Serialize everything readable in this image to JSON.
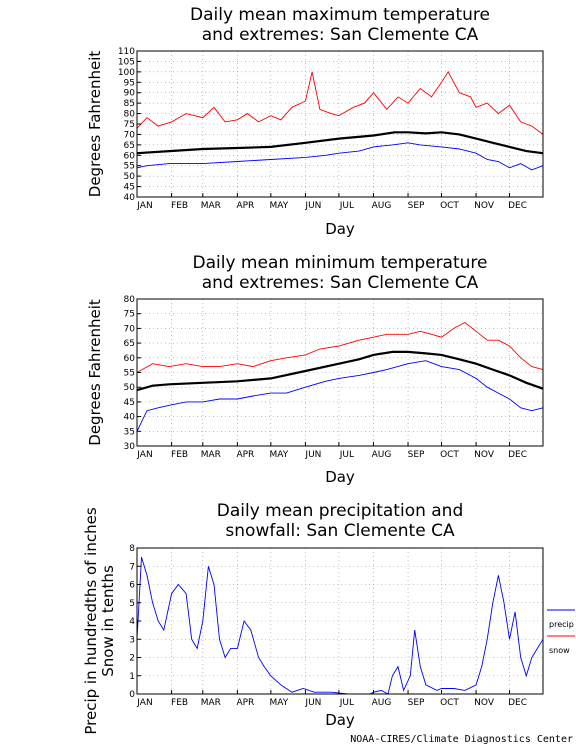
{
  "credit": "NOAA-CIRES/Climate Diagnostics Center",
  "chart_data": [
    {
      "type": "line",
      "title_lines": [
        "Daily mean maximum temperature",
        "and extremes: San Clemente CA"
      ],
      "xlabel": "Day",
      "ylabel": "Degrees Fahrenheit",
      "ylim": [
        40,
        110
      ],
      "yticks": [
        40,
        45,
        50,
        55,
        60,
        65,
        70,
        75,
        80,
        85,
        90,
        95,
        100,
        105,
        110
      ],
      "xticks": [
        "JAN",
        "FEB",
        "MAR",
        "APR",
        "MAY",
        "JUN",
        "JUL",
        "AUG",
        "SEP",
        "OCT",
        "NOV",
        "DEC"
      ],
      "grid": true,
      "series": [
        {
          "color": "#ff0000",
          "x": [
            1,
            10,
            20,
            32,
            45,
            60,
            70,
            80,
            91,
            100,
            110,
            121,
            130,
            140,
            152,
            158,
            165,
            175,
            182,
            195,
            205,
            213,
            225,
            235,
            244,
            255,
            265,
            274,
            280,
            290,
            300,
            305,
            315,
            325,
            335,
            345,
            355,
            365
          ],
          "values": [
            73,
            78,
            74,
            76,
            80,
            78,
            83,
            76,
            77,
            80,
            76,
            79,
            77,
            83,
            86,
            100,
            82,
            80,
            79,
            83,
            85,
            90,
            82,
            88,
            85,
            92,
            88,
            95,
            100,
            90,
            88,
            83,
            85,
            80,
            84,
            76,
            74,
            70
          ]
        },
        {
          "color": "#000000",
          "x": [
            1,
            30,
            60,
            91,
            121,
            152,
            182,
            213,
            232,
            244,
            260,
            274,
            290,
            305,
            320,
            335,
            350,
            365
          ],
          "values": [
            61,
            62,
            63,
            63.5,
            64,
            66,
            68,
            69.5,
            71,
            71,
            70.5,
            71,
            70,
            68,
            66,
            64,
            62,
            61
          ]
        },
        {
          "color": "#0000ff",
          "x": [
            1,
            10,
            30,
            60,
            91,
            121,
            152,
            170,
            182,
            200,
            213,
            230,
            244,
            255,
            274,
            290,
            305,
            315,
            325,
            335,
            345,
            355,
            365
          ],
          "values": [
            54,
            55,
            56,
            56,
            57,
            58,
            59,
            60,
            61,
            62,
            64,
            65,
            66,
            65,
            64,
            63,
            61,
            58,
            57,
            54,
            56,
            53,
            55
          ]
        }
      ]
    },
    {
      "type": "line",
      "title_lines": [
        "Daily mean minimum temperature",
        "and extremes: San Clemente CA"
      ],
      "xlabel": "Day",
      "ylabel": "Degrees Fahrenheit",
      "ylim": [
        30,
        80
      ],
      "yticks": [
        30,
        35,
        40,
        45,
        50,
        55,
        60,
        65,
        70,
        75,
        80
      ],
      "xticks": [
        "JAN",
        "FEB",
        "MAR",
        "APR",
        "MAY",
        "JUN",
        "JUL",
        "AUG",
        "SEP",
        "OCT",
        "NOV",
        "DEC"
      ],
      "grid": true,
      "series": [
        {
          "color": "#ff0000",
          "x": [
            1,
            15,
            30,
            45,
            60,
            75,
            91,
            105,
            121,
            135,
            152,
            165,
            182,
            200,
            213,
            225,
            235,
            244,
            255,
            265,
            274,
            285,
            295,
            305,
            315,
            325,
            335,
            345,
            355,
            365
          ],
          "values": [
            55,
            58,
            57,
            58,
            57,
            57,
            58,
            57,
            59,
            60,
            61,
            63,
            64,
            66,
            67,
            68,
            68,
            68,
            69,
            68,
            67,
            70,
            72,
            69,
            66,
            66,
            64,
            60,
            57,
            56
          ]
        },
        {
          "color": "#000000",
          "x": [
            1,
            15,
            30,
            60,
            91,
            121,
            152,
            182,
            200,
            213,
            230,
            244,
            260,
            274,
            290,
            305,
            320,
            335,
            350,
            365
          ],
          "values": [
            49,
            50.5,
            51,
            51.5,
            52,
            53,
            55.5,
            58,
            59.5,
            61,
            62,
            62,
            61.5,
            61,
            59.5,
            58,
            56,
            54,
            51.5,
            49.5
          ]
        },
        {
          "color": "#0000ff",
          "x": [
            1,
            10,
            20,
            32,
            45,
            60,
            75,
            91,
            105,
            121,
            135,
            152,
            170,
            182,
            200,
            213,
            225,
            244,
            260,
            274,
            290,
            305,
            315,
            325,
            335,
            345,
            355,
            365
          ],
          "values": [
            35,
            42,
            43,
            44,
            45,
            45,
            46,
            46,
            47,
            48,
            48,
            50,
            52,
            53,
            54,
            55,
            56,
            58,
            59,
            57,
            56,
            53,
            50,
            48,
            46,
            43,
            42,
            43
          ]
        }
      ]
    },
    {
      "type": "line",
      "title_lines": [
        "Daily mean precipitation and",
        "snowfall: San Clemente CA"
      ],
      "xlabel": "Day",
      "ylabel_lines": [
        "Precip in hundredths of inches",
        "Snow in tenths"
      ],
      "ylim": [
        0,
        8
      ],
      "yticks": [
        0,
        1,
        2,
        3,
        4,
        5,
        6,
        7,
        8
      ],
      "xticks": [
        "JAN",
        "FEB",
        "MAR",
        "APR",
        "MAY",
        "JUN",
        "JUL",
        "AUG",
        "SEP",
        "OCT",
        "NOV",
        "DEC"
      ],
      "grid": true,
      "legend": "right",
      "series": [
        {
          "name": "precip",
          "color": "#0000ff",
          "x": [
            1,
            5,
            10,
            15,
            20,
            25,
            32,
            38,
            45,
            50,
            55,
            60,
            65,
            70,
            75,
            80,
            85,
            91,
            97,
            103,
            110,
            115,
            121,
            130,
            140,
            150,
            160,
            175,
            190,
            200,
            210,
            213,
            220,
            226,
            230,
            235,
            240,
            246,
            250,
            255,
            260,
            270,
            274,
            285,
            295,
            305,
            310,
            315,
            320,
            325,
            330,
            335,
            340,
            345,
            350,
            355,
            360,
            365
          ],
          "values": [
            3,
            7.5,
            6.5,
            5,
            4,
            3.5,
            5.5,
            6,
            5.5,
            3,
            2.5,
            4,
            7,
            6,
            3,
            2,
            2.5,
            2.5,
            4,
            3.5,
            2,
            1.5,
            1,
            0.5,
            0.1,
            0.3,
            0.1,
            0.1,
            0,
            0,
            0,
            0.1,
            0.2,
            0,
            1,
            1.5,
            0.2,
            1,
            3.5,
            1.5,
            0.5,
            0.2,
            0.3,
            0.3,
            0.2,
            0.5,
            1.5,
            3,
            5,
            6.5,
            5,
            3,
            4.5,
            2,
            1,
            2,
            2.5,
            3
          ]
        },
        {
          "name": "snow",
          "color": "#ff0000",
          "x": [
            1,
            365
          ],
          "values": [
            0,
            0
          ]
        }
      ]
    }
  ]
}
